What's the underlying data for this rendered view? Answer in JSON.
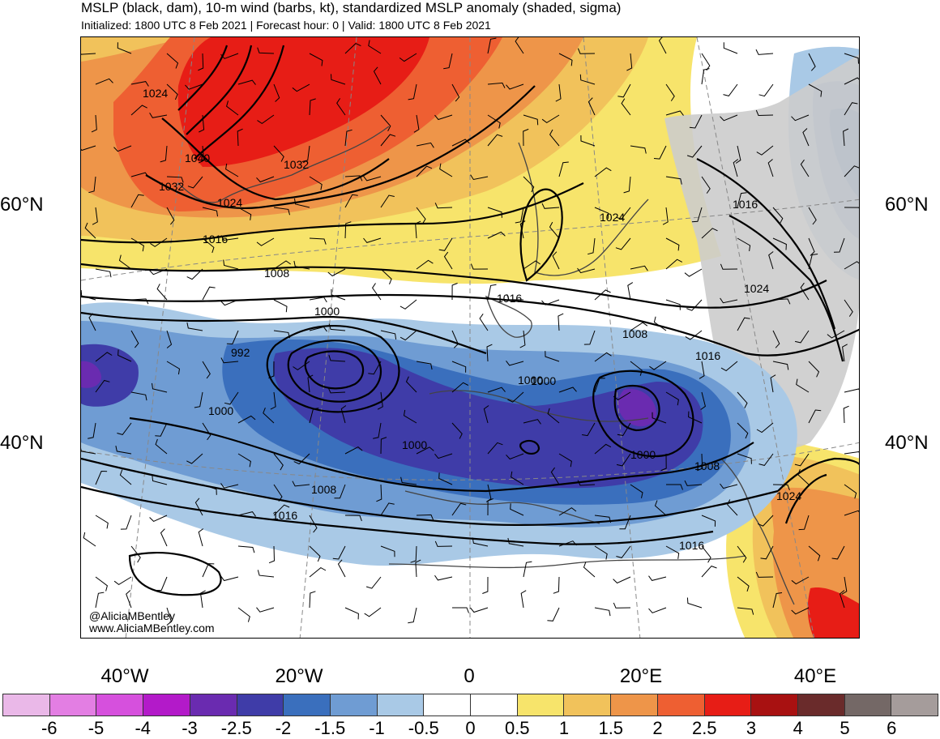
{
  "header": {
    "title": "MSLP (black, dam), 10-m wind (barbs, kt), standardized MSLP anomaly (shaded, sigma)",
    "subtitle": "Initialized: 1800 UTC 8 Feb 2021 | Forecast hour: 0 | Valid: 1800 UTC 8 Feb 2021"
  },
  "axes": {
    "lat_labels_left": [
      "60°N",
      "40°N"
    ],
    "lat_labels_right": [
      "60°N",
      "40°N"
    ],
    "lon_labels": [
      "40°W",
      "20°W",
      "0",
      "20°E",
      "40°E"
    ]
  },
  "credit": {
    "handle": "@AliciaMBentley",
    "website": "www.AliciaMBentley.com"
  },
  "contour_labels": [
    "1024",
    "1040",
    "1032",
    "1032",
    "1024",
    "1016",
    "1008",
    "1000",
    "992",
    "1000",
    "1000",
    "1008",
    "1016",
    "1000",
    "1000",
    "1016",
    "1024",
    "1016",
    "1024",
    "1008",
    "1016",
    "1000",
    "1008",
    "1016",
    "1024"
  ],
  "colorbar": {
    "labels": [
      "-6",
      "-5",
      "-4",
      "-3",
      "-2.5",
      "-2",
      "-1.5",
      "-1",
      "-0.5",
      "0",
      "0.5",
      "1",
      "1.5",
      "2",
      "2.5",
      "3",
      "4",
      "5",
      "6"
    ],
    "colors": [
      "#eab8e8",
      "#e37ee3",
      "#d650dd",
      "#b31ac9",
      "#6a2bb0",
      "#3f3ca8",
      "#3a6fbd",
      "#6f9cd3",
      "#a9c9e6",
      "#ffffff",
      "#ffffff",
      "#f7e46b",
      "#f1c25b",
      "#ee9549",
      "#ee5f32",
      "#e71d16",
      "#a81111",
      "#6a2b2b",
      "#746866",
      "#a59c9b"
    ]
  }
}
